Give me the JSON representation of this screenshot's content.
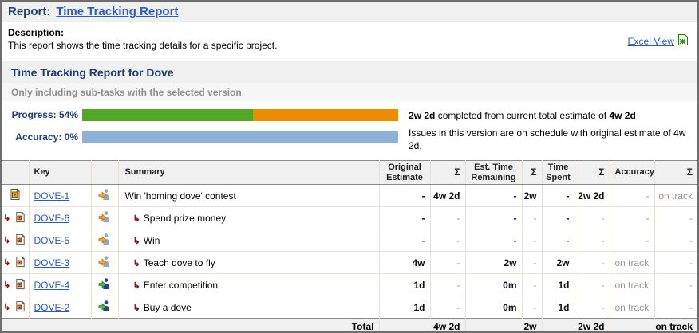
{
  "page": {
    "report_label": "Report:",
    "report_link": "Time Tracking Report",
    "description_label": "Description:",
    "description_text": "This report shows the time tracking details for a specific project.",
    "excel_view_label": "Excel View"
  },
  "section": {
    "title": "Time Tracking Report for Dove",
    "note": "Only including sub-tasks with the selected version"
  },
  "progress": {
    "progress_label": "Progress: 54%",
    "accuracy_label": "Accuracy: 0%",
    "progress_pct": 54,
    "completed_bold1": "2w 2d",
    "completed_mid": " completed from current total estimate of ",
    "completed_bold2": "4w 2d",
    "schedule_text": "Issues in this version are on schedule with original estimate of 4w 2d.",
    "colors": {
      "done": "#51a825",
      "remaining": "#ee8c00",
      "accuracy": "#8fb0d8"
    }
  },
  "table": {
    "headers": {
      "key": "Key",
      "summary": "Summary",
      "original_estimate": "Original Estimate",
      "est_time_remaining": "Est. Time Remaining",
      "time_spent": "Time Spent",
      "accuracy": "Accuracy",
      "sigma": "Σ"
    },
    "status_colors": {
      "inprogress": {
        "body": "#96a5c0",
        "arrow": "#f9a42c",
        "stroke": "#b86a00"
      },
      "open": {
        "body": "#2a3f8f",
        "arrow": "#43bf43",
        "stroke": "#187818"
      }
    },
    "rows": [
      {
        "type": "task",
        "key": "DOVE-1",
        "status": "inprogress",
        "subtask": false,
        "summary": "Win 'homing dove' contest",
        "sigma_strong": true,
        "original_estimate": "-",
        "oe_sigma": "4w 2d",
        "est_remaining": "-",
        "etr_sigma": "2w",
        "time_spent": "-",
        "ts_sigma": "2w 2d",
        "accuracy": "-",
        "acc_sigma": "on track"
      },
      {
        "type": "subtask",
        "key": "DOVE-6",
        "status": "inprogress",
        "subtask": true,
        "summary": "Spend prize money",
        "sigma_strong": false,
        "original_estimate": "-",
        "oe_sigma": "-",
        "est_remaining": "-",
        "etr_sigma": "-",
        "time_spent": "-",
        "ts_sigma": "-",
        "accuracy": "-",
        "acc_sigma": "-"
      },
      {
        "type": "subtask",
        "key": "DOVE-5",
        "status": "inprogress",
        "subtask": true,
        "summary": "Win",
        "sigma_strong": false,
        "original_estimate": "-",
        "oe_sigma": "-",
        "est_remaining": "-",
        "etr_sigma": "-",
        "time_spent": "-",
        "ts_sigma": "-",
        "accuracy": "-",
        "acc_sigma": "-"
      },
      {
        "type": "subtask",
        "key": "DOVE-3",
        "status": "inprogress",
        "subtask": true,
        "summary": "Teach dove to fly",
        "sigma_strong": false,
        "original_estimate": "4w",
        "oe_sigma": "-",
        "est_remaining": "2w",
        "etr_sigma": "-",
        "time_spent": "2w",
        "ts_sigma": "-",
        "accuracy": "on track",
        "acc_sigma": "-"
      },
      {
        "type": "subtask",
        "key": "DOVE-4",
        "status": "open",
        "subtask": true,
        "summary": "Enter competition",
        "sigma_strong": false,
        "original_estimate": "1d",
        "oe_sigma": "-",
        "est_remaining": "0m",
        "etr_sigma": "-",
        "time_spent": "1d",
        "ts_sigma": "-",
        "accuracy": "on track",
        "acc_sigma": "-"
      },
      {
        "type": "subtask",
        "key": "DOVE-2",
        "status": "open",
        "subtask": true,
        "summary": "Buy a dove",
        "sigma_strong": false,
        "original_estimate": "1d",
        "oe_sigma": "-",
        "est_remaining": "0m",
        "etr_sigma": "-",
        "time_spent": "1d",
        "ts_sigma": "-",
        "accuracy": "on track",
        "acc_sigma": "-"
      }
    ],
    "total": {
      "label": "Total",
      "original_estimate": "4w 2d",
      "est_remaining": "2w",
      "time_spent": "2w 2d",
      "accuracy": "on track"
    }
  }
}
